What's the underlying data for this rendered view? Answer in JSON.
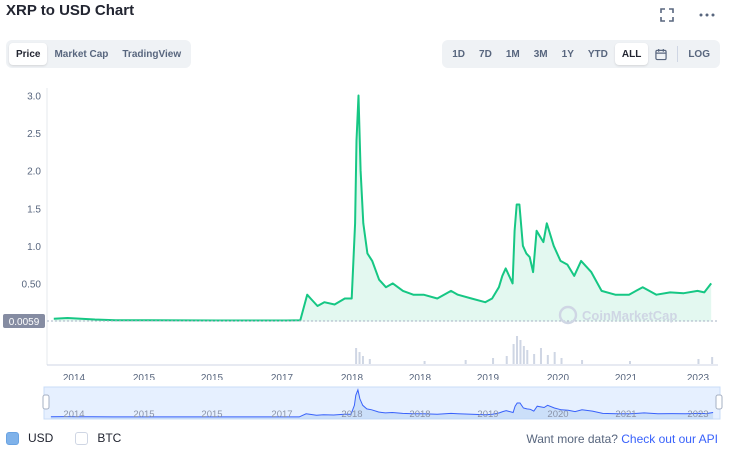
{
  "header": {
    "title": "XRP to USD Chart",
    "fullscreen_icon": "fullscreen-icon",
    "more_icon": "more-options-icon"
  },
  "view_tabs": [
    {
      "label": "Price",
      "active": true
    },
    {
      "label": "Market Cap",
      "active": false
    },
    {
      "label": "TradingView",
      "active": false
    }
  ],
  "range_tabs": [
    {
      "label": "1D",
      "active": false
    },
    {
      "label": "7D",
      "active": false
    },
    {
      "label": "1M",
      "active": false
    },
    {
      "label": "3M",
      "active": false
    },
    {
      "label": "1Y",
      "active": false
    },
    {
      "label": "YTD",
      "active": false
    },
    {
      "label": "ALL",
      "active": true
    }
  ],
  "calendar_icon": "calendar-icon",
  "log_label": "LOG",
  "watermark": "CoinMarketCap",
  "current_price_tag": "0.0059",
  "legend": {
    "usd": "USD",
    "btc": "BTC"
  },
  "api_text": {
    "prefix": "Want more data?",
    "link": "Check out our API"
  },
  "colors": {
    "line": "#16c784",
    "fill": "#16c784",
    "nav_line": "#3861fb",
    "nav_fill": "#e6f0ff",
    "price_tag_bg": "#858ca2",
    "volume": "#cfd6e4"
  },
  "chart_data": {
    "type": "line",
    "series": [
      {
        "name": "USD",
        "x": [
          2013.6,
          2013.8,
          2014.0,
          2014.2,
          2014.5,
          2015.0,
          2015.5,
          2016.0,
          2016.5,
          2017.0,
          2017.2,
          2017.3,
          2017.35,
          2017.45,
          2017.55,
          2017.7,
          2017.85,
          2017.95,
          2018.0,
          2018.02,
          2018.05,
          2018.08,
          2018.12,
          2018.18,
          2018.25,
          2018.35,
          2018.45,
          2018.55,
          2018.7,
          2018.85,
          2019.0,
          2019.2,
          2019.4,
          2019.5,
          2019.7,
          2019.9,
          2020.0,
          2020.1,
          2020.15,
          2020.2,
          2020.3,
          2020.33,
          2020.36,
          2020.4,
          2020.45,
          2020.5,
          2020.55,
          2020.6,
          2020.65,
          2020.75,
          2020.8,
          2020.9,
          2021.0,
          2021.1,
          2021.2,
          2021.3,
          2021.45,
          2021.6,
          2021.8,
          2022.0,
          2022.2,
          2022.4,
          2022.6,
          2022.8,
          2023.0,
          2023.1,
          2023.2
        ],
        "values": [
          0.03,
          0.04,
          0.03,
          0.02,
          0.01,
          0.01,
          0.008,
          0.007,
          0.006,
          0.006,
          0.01,
          0.35,
          0.3,
          0.2,
          0.25,
          0.22,
          0.3,
          0.3,
          1.3,
          2.4,
          3.0,
          2.0,
          1.3,
          0.9,
          0.8,
          0.55,
          0.45,
          0.5,
          0.4,
          0.35,
          0.35,
          0.3,
          0.4,
          0.35,
          0.3,
          0.25,
          0.3,
          0.45,
          0.6,
          0.7,
          0.5,
          1.2,
          1.55,
          1.55,
          1.0,
          0.9,
          0.85,
          0.65,
          1.2,
          1.05,
          1.3,
          1.0,
          0.8,
          0.75,
          0.6,
          0.8,
          0.65,
          0.4,
          0.35,
          0.35,
          0.45,
          0.35,
          0.38,
          0.37,
          0.4,
          0.38,
          0.5
        ]
      }
    ],
    "x_ticks": [
      "2014",
      "2015",
      "2015",
      "2017",
      "2018",
      "2018",
      "2019",
      "2020",
      "2020",
      "2021",
      "2022",
      "2023"
    ],
    "y_ticks": [
      "3.0",
      "2.5",
      "2.0",
      "1.5",
      "1.0",
      "0.50"
    ],
    "ylim": [
      0,
      3.1
    ],
    "grid": false,
    "legend_placement": "bottom-left"
  }
}
